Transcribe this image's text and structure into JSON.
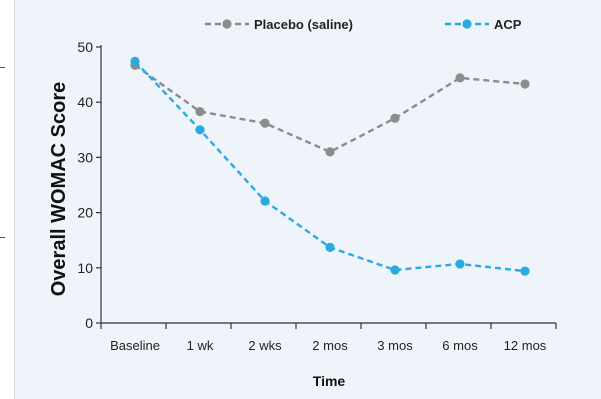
{
  "chart_data": {
    "type": "line",
    "title": "",
    "xlabel": "Time",
    "ylabel": "Overall WOMAC Score",
    "categories": [
      "Baseline",
      "1 wk",
      "2 wks",
      "2 mos",
      "3 mos",
      "6 mos",
      "12 mos"
    ],
    "yticks": [
      "0",
      "10",
      "20",
      "30",
      "40",
      "50"
    ],
    "ylim": [
      0,
      50
    ],
    "grid": false,
    "legend_position": "top",
    "series": [
      {
        "name": "Placebo (saline)",
        "color": "#8c8c8c",
        "values": [
          46.7,
          38.3,
          36.2,
          31.0,
          37.1,
          44.4,
          43.3
        ]
      },
      {
        "name": "ACP",
        "color": "#29abe2",
        "values": [
          47.4,
          35.0,
          22.1,
          13.7,
          9.6,
          10.7,
          9.4
        ]
      }
    ]
  }
}
